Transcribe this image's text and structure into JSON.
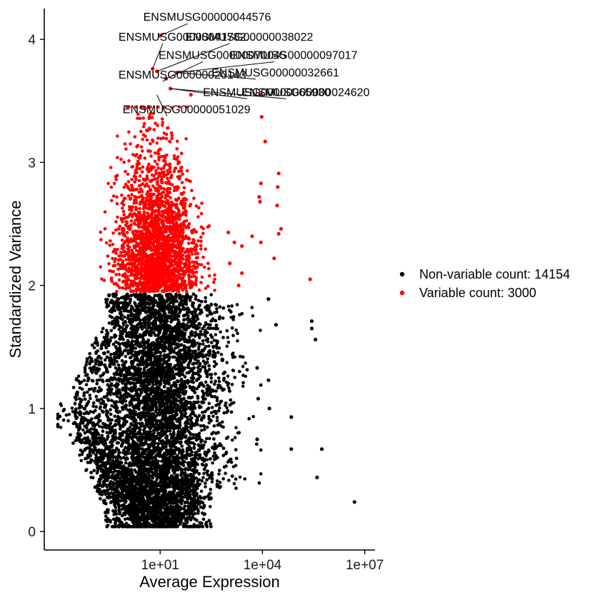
{
  "chart_data": {
    "type": "scatter",
    "xlabel": "Average Expression",
    "ylabel": "Standardized Variance",
    "x_scale": "log10",
    "xlim": [
      0.004,
      20000000
    ],
    "ylim": [
      -0.15,
      4.25
    ],
    "x_ticks": [
      {
        "value": 10,
        "label": "1e+01"
      },
      {
        "value": 10000,
        "label": "1e+04"
      },
      {
        "value": 10000000,
        "label": "1e+07"
      }
    ],
    "y_ticks": [
      {
        "value": 0,
        "label": "0"
      },
      {
        "value": 1,
        "label": "1"
      },
      {
        "value": 2,
        "label": "2"
      },
      {
        "value": 3,
        "label": "3"
      },
      {
        "value": 4,
        "label": "4"
      }
    ],
    "grid": false,
    "legend_position": "right",
    "series": [
      {
        "name": "Non-variable count: 14154",
        "color": "#000000",
        "count": 14154,
        "highlighted_points": [
          {
            "x": 15000,
            "y": 1.89
          },
          {
            "x": 25000,
            "y": 1.68
          },
          {
            "x": 280000,
            "y": 1.71
          },
          {
            "x": 280000,
            "y": 1.65
          },
          {
            "x": 360000,
            "y": 1.56
          },
          {
            "x": 15000,
            "y": 1.23
          },
          {
            "x": 16000,
            "y": 1.0
          },
          {
            "x": 70000,
            "y": 0.93
          },
          {
            "x": 70000,
            "y": 0.67
          },
          {
            "x": 550000,
            "y": 0.67
          },
          {
            "x": 400000,
            "y": 0.44
          },
          {
            "x": 5000000,
            "y": 0.24
          },
          {
            "x": 7000,
            "y": 1.33
          },
          {
            "x": 7500,
            "y": 1.08
          },
          {
            "x": 7000,
            "y": 0.75
          }
        ]
      },
      {
        "name": "Variable count: 3000",
        "color": "#ff0000",
        "count": 3000,
        "highlighted_points": [
          {
            "x": 10,
            "y": 4.03
          },
          {
            "x": 6,
            "y": 3.76
          },
          {
            "x": 8,
            "y": 3.74
          },
          {
            "x": 30,
            "y": 3.73
          },
          {
            "x": 15,
            "y": 3.68
          },
          {
            "x": 20,
            "y": 3.6
          },
          {
            "x": 80,
            "y": 3.55
          },
          {
            "x": 9000,
            "y": 3.55
          },
          {
            "x": 9500,
            "y": 3.37
          },
          {
            "x": 12000,
            "y": 3.17
          },
          {
            "x": 250000,
            "y": 2.05
          },
          {
            "x": 30000,
            "y": 2.91
          },
          {
            "x": 28000,
            "y": 2.8
          },
          {
            "x": 27000,
            "y": 2.65
          },
          {
            "x": 35000,
            "y": 2.46
          },
          {
            "x": 30000,
            "y": 2.42
          },
          {
            "x": 22000,
            "y": 2.22
          },
          {
            "x": 9000,
            "y": 2.83
          },
          {
            "x": 8000,
            "y": 2.72
          },
          {
            "x": 8500,
            "y": 2.68
          },
          {
            "x": 1000,
            "y": 2.43
          },
          {
            "x": 1500,
            "y": 2.35
          },
          {
            "x": 2500,
            "y": 2.32
          },
          {
            "x": 5000,
            "y": 2.4
          },
          {
            "x": 9000,
            "y": 2.35
          },
          {
            "x": 1100,
            "y": 2.18
          },
          {
            "x": 2500,
            "y": 2.1
          },
          {
            "x": 2000,
            "y": 2.0
          }
        ]
      }
    ],
    "annotations": [
      {
        "text": "ENSMUSG00000044576",
        "x": 10,
        "y": 4.03,
        "label_x": 3.2,
        "label_y": 4.15
      },
      {
        "text": "ENSMUSG00000041782",
        "x": 6,
        "y": 3.76,
        "label_x": 0.6,
        "label_y": 3.99
      },
      {
        "text": "ENSMUSG00000038022",
        "x": 8,
        "y": 3.74,
        "label_x": 55,
        "label_y": 3.99
      },
      {
        "text": "ENSMUSG00000070045",
        "x": 15,
        "y": 3.68,
        "label_x": 9,
        "label_y": 3.84
      },
      {
        "text": "ENSMUSG00000097017",
        "x": 30,
        "y": 3.73,
        "label_x": 1100,
        "label_y": 3.84
      },
      {
        "text": "ENSMUSG00000020143",
        "x": 15,
        "y": 3.68,
        "label_x": 0.6,
        "label_y": 3.68
      },
      {
        "text": "ENSMUSG00000032661",
        "x": 30,
        "y": 3.73,
        "label_x": 320,
        "label_y": 3.7
      },
      {
        "text": "ENSMUSG00000065930",
        "x": 20,
        "y": 3.6,
        "label_x": 180,
        "label_y": 3.54
      },
      {
        "text": "ENSMUSG00000024620",
        "x": 20,
        "y": 3.6,
        "label_x": 2500,
        "label_y": 3.54
      },
      {
        "text": "ENSMUSG00000051029",
        "x": 8,
        "y": 3.55,
        "label_x": 0.8,
        "label_y": 3.4
      }
    ]
  }
}
